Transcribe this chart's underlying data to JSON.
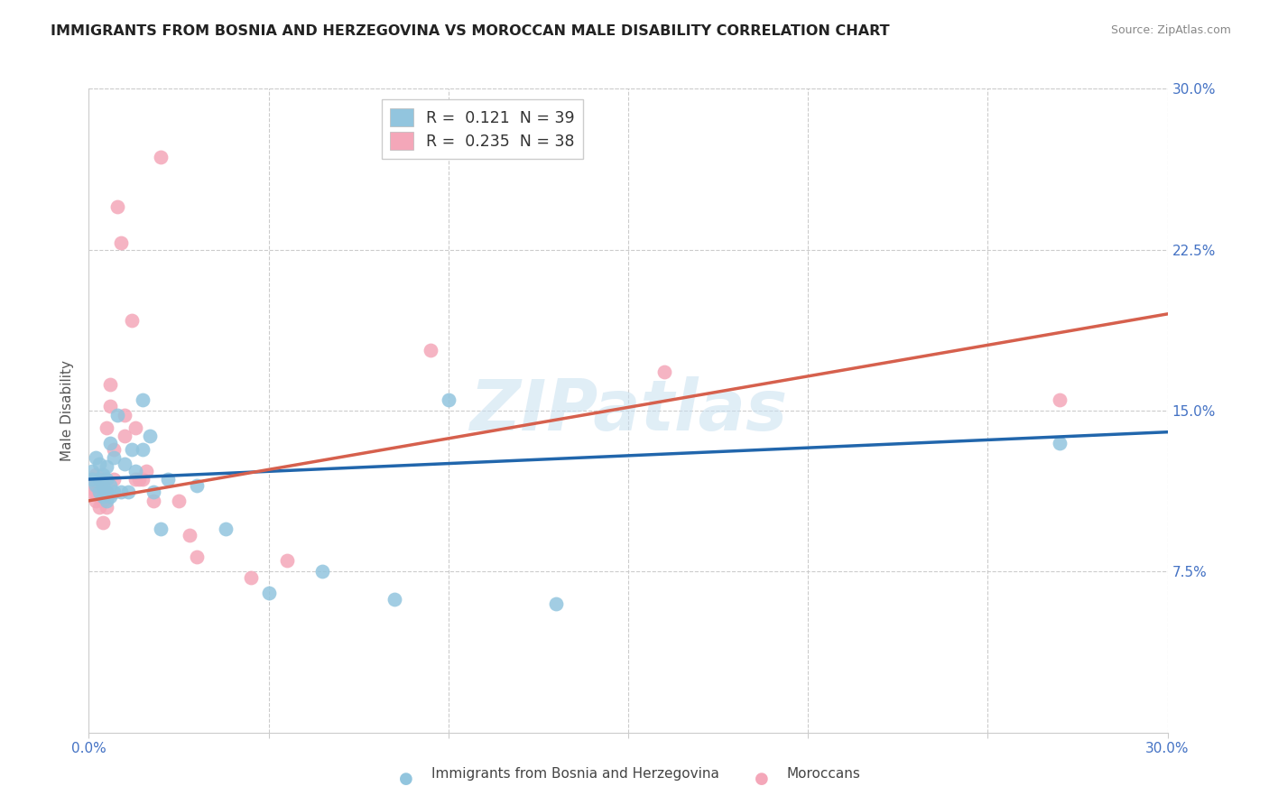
{
  "title": "IMMIGRANTS FROM BOSNIA AND HERZEGOVINA VS MOROCCAN MALE DISABILITY CORRELATION CHART",
  "source": "Source: ZipAtlas.com",
  "ylabel": "Male Disability",
  "xlim": [
    0.0,
    0.3
  ],
  "ylim": [
    0.0,
    0.3
  ],
  "legend_label1": "Immigrants from Bosnia and Herzegovina",
  "legend_label2": "Moroccans",
  "blue_color": "#92c5de",
  "pink_color": "#f4a7b9",
  "blue_line_color": "#2166ac",
  "pink_line_color": "#d6604d",
  "watermark": "ZIPatlas",
  "blue_scatter_x": [
    0.001,
    0.001,
    0.002,
    0.002,
    0.003,
    0.003,
    0.003,
    0.004,
    0.004,
    0.004,
    0.005,
    0.005,
    0.005,
    0.005,
    0.006,
    0.006,
    0.006,
    0.007,
    0.007,
    0.008,
    0.009,
    0.01,
    0.011,
    0.012,
    0.013,
    0.015,
    0.015,
    0.017,
    0.018,
    0.02,
    0.022,
    0.03,
    0.038,
    0.05,
    0.065,
    0.085,
    0.13,
    0.27,
    0.1
  ],
  "blue_scatter_y": [
    0.122,
    0.118,
    0.115,
    0.128,
    0.112,
    0.118,
    0.125,
    0.11,
    0.115,
    0.12,
    0.108,
    0.112,
    0.118,
    0.124,
    0.11,
    0.115,
    0.135,
    0.112,
    0.128,
    0.148,
    0.112,
    0.125,
    0.112,
    0.132,
    0.122,
    0.155,
    0.132,
    0.138,
    0.112,
    0.095,
    0.118,
    0.115,
    0.095,
    0.065,
    0.075,
    0.062,
    0.06,
    0.135,
    0.155
  ],
  "pink_scatter_x": [
    0.001,
    0.001,
    0.002,
    0.002,
    0.002,
    0.003,
    0.003,
    0.003,
    0.004,
    0.004,
    0.004,
    0.005,
    0.005,
    0.005,
    0.006,
    0.006,
    0.007,
    0.007,
    0.008,
    0.009,
    0.01,
    0.01,
    0.012,
    0.013,
    0.013,
    0.014,
    0.015,
    0.016,
    0.018,
    0.02,
    0.025,
    0.028,
    0.03,
    0.045,
    0.095,
    0.16,
    0.055,
    0.27
  ],
  "pink_scatter_y": [
    0.112,
    0.118,
    0.108,
    0.112,
    0.12,
    0.105,
    0.11,
    0.115,
    0.098,
    0.108,
    0.118,
    0.105,
    0.112,
    0.142,
    0.152,
    0.162,
    0.132,
    0.118,
    0.245,
    0.228,
    0.138,
    0.148,
    0.192,
    0.142,
    0.118,
    0.118,
    0.118,
    0.122,
    0.108,
    0.268,
    0.108,
    0.092,
    0.082,
    0.072,
    0.178,
    0.168,
    0.08,
    0.155
  ],
  "blue_line_x0": 0.0,
  "blue_line_x1": 0.3,
  "blue_line_y0": 0.118,
  "blue_line_y1": 0.14,
  "pink_line_x0": 0.0,
  "pink_line_x1": 0.3,
  "pink_line_y0": 0.108,
  "pink_line_y1": 0.195,
  "background_color": "#ffffff",
  "grid_color": "#cccccc"
}
